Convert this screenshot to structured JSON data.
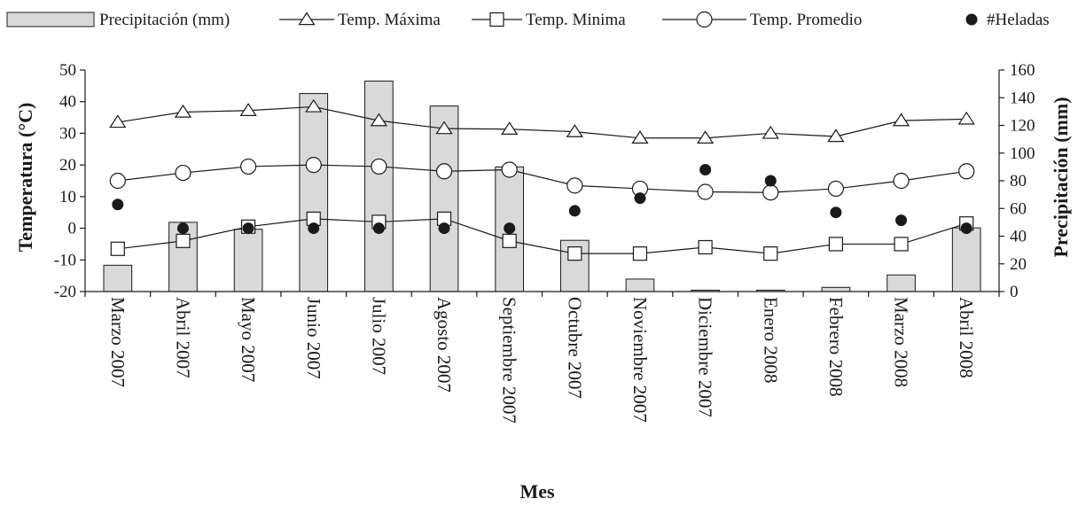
{
  "chart_data": {
    "type": "bar",
    "title": "",
    "xlabel": "Mes",
    "ylabel_left": "Temperatura (°C)",
    "ylabel_right": "Precipitación (mm)",
    "ylim_left": [
      -20,
      50
    ],
    "yticks_left": [
      -20,
      -10,
      0,
      10,
      20,
      30,
      40,
      50
    ],
    "ylim_right": [
      0,
      160
    ],
    "yticks_right": [
      0,
      20,
      40,
      60,
      80,
      100,
      120,
      140,
      160
    ],
    "grid": false,
    "legend_position": "top",
    "categories": [
      "Marzo 2007",
      "Abril 2007",
      "Mayo 2007",
      "Junio 2007",
      "Julio 2007",
      "Agosto 2007",
      "Septiembre 2007",
      "Octubre 2007",
      "Noviembre 2007",
      "Diciembre 2007",
      "Enero 2008",
      "Febrero 2008",
      "Marzo 2008",
      "Abril 2008"
    ],
    "series": [
      {
        "name": "Precipitación (mm)",
        "type": "bar",
        "axis": "right",
        "color": "#d9d9d9",
        "values": [
          19,
          50,
          45,
          143,
          152,
          134,
          90,
          37,
          9,
          1,
          1,
          3,
          12,
          46
        ]
      },
      {
        "name": "Temp. Máxima",
        "type": "line",
        "marker": "triangle",
        "axis": "left",
        "values": [
          33.5,
          36.7,
          37.2,
          38.4,
          34.0,
          31.5,
          31.3,
          30.5,
          28.5,
          28.5,
          30.0,
          29.0,
          34.0,
          34.5
        ]
      },
      {
        "name": "Temp. Minima",
        "type": "line",
        "marker": "square",
        "axis": "left",
        "values": [
          -6.5,
          -4.0,
          0.5,
          3.0,
          2.0,
          3.0,
          -4.0,
          -8.0,
          -8.0,
          -6.0,
          -8.0,
          -5.0,
          -5.0,
          1.5
        ]
      },
      {
        "name": "Temp. Promedio",
        "type": "line",
        "marker": "circle",
        "axis": "left",
        "values": [
          15.0,
          17.5,
          19.5,
          20.0,
          19.5,
          18.0,
          18.5,
          13.5,
          12.5,
          11.5,
          11.3,
          12.5,
          15.0,
          18.0
        ]
      },
      {
        "name": "#Heladas",
        "type": "scatter",
        "marker": "filled-circle",
        "axis": "left",
        "values": [
          7.5,
          0,
          0,
          0,
          0,
          0,
          0,
          5.5,
          9.5,
          18.5,
          15.0,
          5.0,
          2.5,
          0
        ]
      }
    ]
  }
}
